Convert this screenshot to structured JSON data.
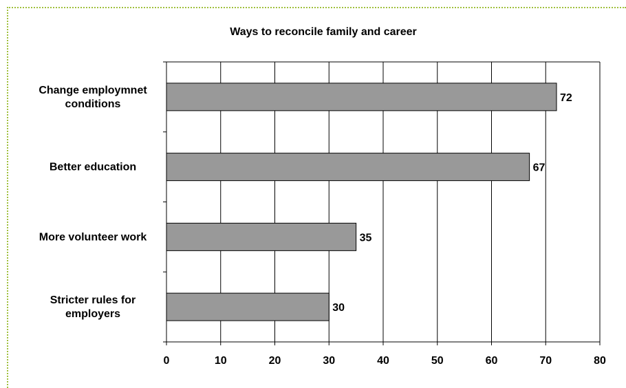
{
  "chart_data": {
    "type": "bar",
    "orientation": "horizontal",
    "title": "Ways to reconcile family and career",
    "categories": [
      [
        "Change employmnet",
        "conditions"
      ],
      [
        "Better education"
      ],
      [
        "More volunteer work"
      ],
      [
        "Stricter rules for",
        "employers"
      ]
    ],
    "values": [
      72,
      67,
      35,
      30
    ],
    "xlim": [
      0,
      80
    ],
    "xticks": [
      0,
      10,
      20,
      30,
      40,
      50,
      60,
      70,
      80
    ],
    "grid": true,
    "bar_color": "#999999",
    "frame_color": "#9fbf3b"
  }
}
